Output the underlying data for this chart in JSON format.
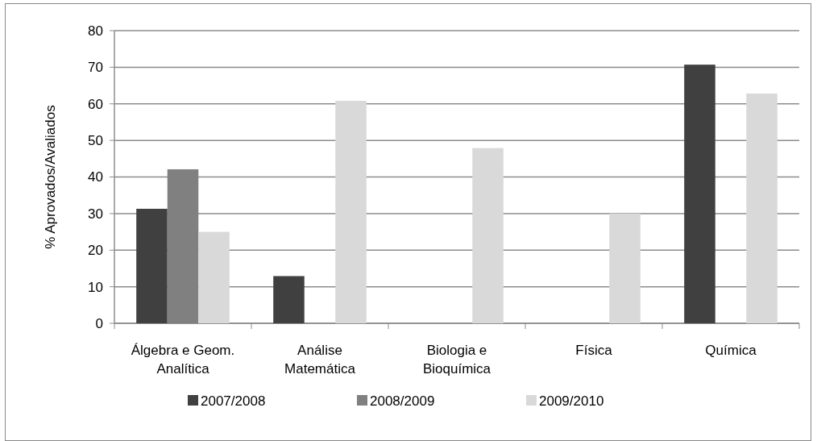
{
  "chart_data": {
    "type": "bar",
    "ylabel": "% Aprovados/Avaliados",
    "categories": [
      "Álgebra e Geom. Analítica",
      "Análise Matemática",
      "Biologia e Bioquímica",
      "Física",
      "Química"
    ],
    "series": [
      {
        "name": "2007/2008",
        "color": "#404040",
        "values": [
          31.3,
          12.9,
          null,
          null,
          70.7
        ]
      },
      {
        "name": "2008/2009",
        "color": "#808080",
        "values": [
          42.1,
          null,
          null,
          null,
          null
        ]
      },
      {
        "name": "2009/2010",
        "color": "#d9d9d9",
        "values": [
          25.0,
          60.8,
          47.9,
          30.0,
          62.8
        ]
      }
    ],
    "ylim": [
      0,
      80
    ],
    "yticks": [
      0,
      10,
      20,
      30,
      40,
      50,
      60,
      70,
      80
    ],
    "grid": "y",
    "legend": "bottom"
  }
}
